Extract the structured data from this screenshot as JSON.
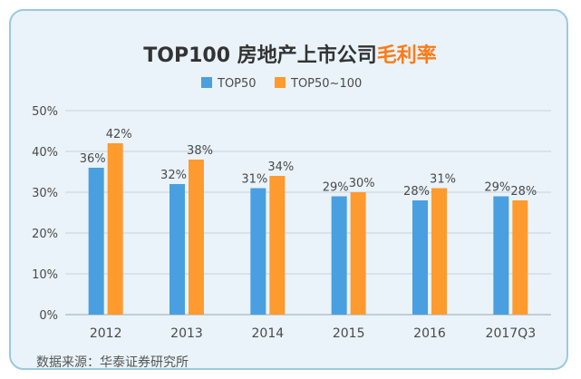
{
  "title": {
    "main": "TOP100 房地产上市公司",
    "accent": "毛利率"
  },
  "source": "数据来源：华泰证券研究所",
  "colors": {
    "series1": "#4a9fe0",
    "series2": "#ff9a2e",
    "grid": "#c7d2da",
    "accent": "#ff7a17"
  },
  "chart_data": {
    "type": "bar",
    "categories": [
      "2012",
      "2013",
      "2014",
      "2015",
      "2016",
      "2017Q3"
    ],
    "series": [
      {
        "name": "TOP50",
        "values": [
          36,
          32,
          31,
          29,
          28,
          29
        ],
        "labels": [
          "36%",
          "32%",
          "31%",
          "29%",
          "28%",
          "29%"
        ]
      },
      {
        "name": "TOP50~100",
        "values": [
          42,
          38,
          34,
          30,
          31,
          28
        ],
        "labels": [
          "42%",
          "38%",
          "34%",
          "30%",
          "31%",
          "28%"
        ]
      }
    ],
    "ylim": [
      0,
      50
    ],
    "yticks": [
      "0%",
      "10%",
      "20%",
      "30%",
      "40%",
      "50%"
    ],
    "grid": true,
    "legend": "top-center"
  }
}
